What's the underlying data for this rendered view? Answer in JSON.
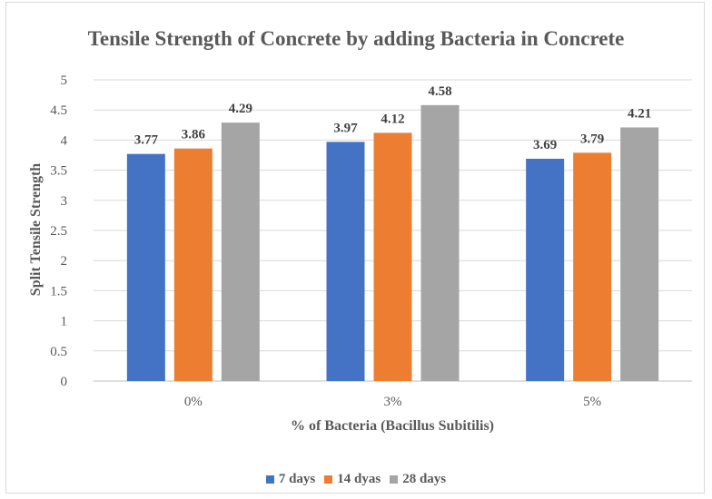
{
  "chart_data": {
    "type": "bar",
    "title": "Tensile Strength of Concrete by adding Bacteria in Concrete",
    "xlabel": "% of Bacteria (Bacillus Subitilis)",
    "ylabel": "Split Tensile Strength",
    "categories": [
      "0%",
      "3%",
      "5%"
    ],
    "series": [
      {
        "name": "7 days",
        "color": "#4472c4",
        "values": [
          3.77,
          3.97,
          3.69
        ]
      },
      {
        "name": "14 dyas",
        "color": "#ed7d31",
        "values": [
          3.86,
          4.12,
          3.79
        ]
      },
      {
        "name": "28 days",
        "color": "#a5a5a5",
        "values": [
          4.29,
          4.58,
          4.21
        ]
      }
    ],
    "ylim": [
      0,
      5
    ],
    "yticks": [
      "0",
      "0.5",
      "1",
      "1.5",
      "2",
      "2.5",
      "3",
      "3.5",
      "4",
      "4.5",
      "5"
    ],
    "grid": true,
    "legend_position": "bottom"
  }
}
